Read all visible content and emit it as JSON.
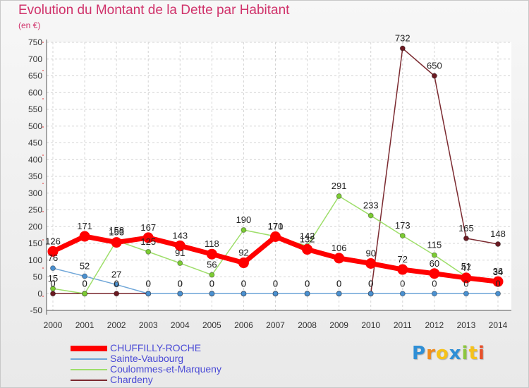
{
  "chart_data": {
    "type": "line",
    "title": "Evolution du Montant de la Dette par Habitant",
    "subtitle": "(en €)",
    "x": [
      "2000",
      "2001",
      "2002",
      "2003",
      "2004",
      "2005",
      "2006",
      "2007",
      "2008",
      "2009",
      "2010",
      "2011",
      "2012",
      "2013",
      "2014"
    ],
    "ylim": [
      -50,
      750
    ],
    "yticks": [
      -50,
      0,
      50,
      100,
      150,
      200,
      250,
      300,
      350,
      400,
      450,
      500,
      550,
      600,
      650,
      700,
      750
    ],
    "grid": true,
    "legend_position": "bottom-left",
    "series": [
      {
        "name": "CHUFFILLY-ROCHE",
        "color": "#ff0000",
        "marker_color": "#ff0000",
        "highlight": true,
        "values": [
          126,
          171,
          153,
          167,
          143,
          118,
          92,
          170,
          132,
          106,
          90,
          72,
          60,
          47,
          36
        ],
        "labels": [
          "126",
          "171",
          "153",
          "167",
          "143",
          "118",
          "92",
          "170",
          "132",
          "106",
          "90",
          "72",
          "60",
          "47",
          "36"
        ]
      },
      {
        "name": "Sainte-Vaubourg",
        "color": "#6fa6d8",
        "marker_color": "#4a90d0",
        "values": [
          76,
          52,
          27,
          0,
          0,
          0,
          0,
          0,
          0,
          0,
          0,
          0,
          0,
          0,
          0
        ],
        "labels": [
          "76",
          "52",
          "27",
          "0",
          "0",
          "0",
          "0",
          "0",
          "0",
          "0",
          "0",
          "0",
          "0",
          "0",
          "0"
        ]
      },
      {
        "name": "Coulommes-et-Marqueny",
        "color": "#9ede6a",
        "marker_color": "#7ccc33",
        "values": [
          15,
          0,
          158,
          125,
          91,
          56,
          190,
          171,
          142,
          291,
          233,
          173,
          115,
          51,
          34
        ],
        "labels": [
          "15",
          "0",
          "158",
          "125",
          "91",
          "56",
          "190",
          "171",
          "142",
          "291",
          "233",
          "173",
          "115",
          "51",
          "34"
        ]
      },
      {
        "name": "Chardeny",
        "color": "#7b2a30",
        "marker_color": "#6b1a22",
        "values": [
          0,
          0,
          0,
          0,
          0,
          0,
          0,
          0,
          0,
          0,
          0,
          732,
          650,
          165,
          148
        ],
        "labels": [
          "0",
          "0",
          "0",
          "0",
          "0",
          "0",
          "0",
          "0",
          "0",
          "0",
          "0",
          "732",
          "650",
          "165",
          "148"
        ]
      }
    ]
  },
  "logo": {
    "letters": [
      "P",
      "r",
      "o",
      "x",
      "i",
      "t",
      "i"
    ],
    "colors": [
      "#2f8fd6",
      "#f08a1c",
      "#f6c21a",
      "#2f8fd6",
      "#8cc63f",
      "#f6c21a",
      "#e8502a"
    ]
  }
}
